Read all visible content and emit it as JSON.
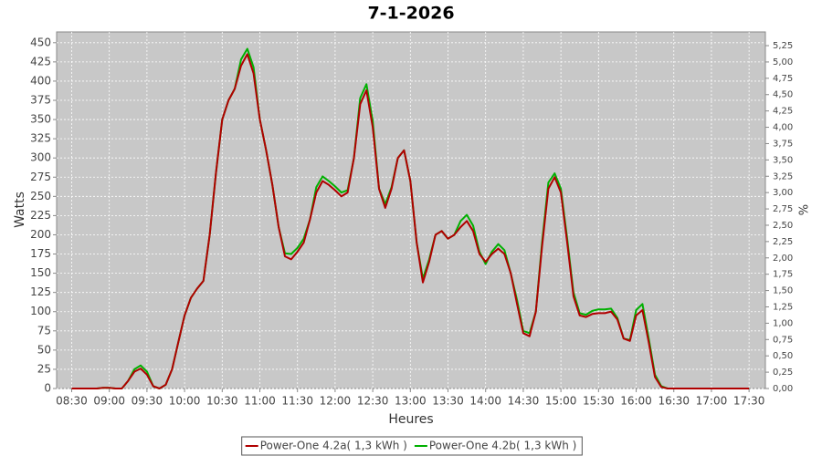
{
  "chart_data": {
    "type": "line",
    "title": "7-1-2026",
    "x_label": "Heures",
    "y_label": "Watts",
    "y2_label": "%",
    "x": [
      "08:30",
      "08:35",
      "08:40",
      "08:45",
      "08:50",
      "08:55",
      "09:00",
      "09:05",
      "09:10",
      "09:15",
      "09:20",
      "09:25",
      "09:30",
      "09:35",
      "09:40",
      "09:45",
      "09:50",
      "09:55",
      "10:00",
      "10:05",
      "10:10",
      "10:15",
      "10:20",
      "10:25",
      "10:30",
      "10:35",
      "10:40",
      "10:45",
      "10:50",
      "10:55",
      "11:00",
      "11:05",
      "11:10",
      "11:15",
      "11:20",
      "11:25",
      "11:30",
      "11:35",
      "11:40",
      "11:45",
      "11:50",
      "11:55",
      "12:00",
      "12:05",
      "12:10",
      "12:15",
      "12:20",
      "12:25",
      "12:30",
      "12:35",
      "12:40",
      "12:45",
      "12:50",
      "12:55",
      "13:00",
      "13:05",
      "13:10",
      "13:15",
      "13:20",
      "13:25",
      "13:30",
      "13:35",
      "13:40",
      "13:45",
      "13:50",
      "13:55",
      "14:00",
      "14:05",
      "14:10",
      "14:15",
      "14:20",
      "14:25",
      "14:30",
      "14:35",
      "14:40",
      "14:45",
      "14:50",
      "14:55",
      "15:00",
      "15:05",
      "15:10",
      "15:15",
      "15:20",
      "15:25",
      "15:30",
      "15:35",
      "15:40",
      "15:45",
      "15:50",
      "15:55",
      "16:00",
      "16:05",
      "16:10",
      "16:15",
      "16:20",
      "16:25",
      "16:30",
      "16:35",
      "16:40",
      "16:45",
      "16:50",
      "16:55",
      "17:00",
      "17:05",
      "17:10",
      "17:15",
      "17:20",
      "17:25",
      "17:30"
    ],
    "series": [
      {
        "name": "Power-One 4.2a( 1,3 kWh )",
        "color": "#b00000",
        "values": [
          0,
          0,
          0,
          0,
          0,
          1,
          1,
          0,
          0,
          10,
          22,
          26,
          18,
          3,
          0,
          5,
          25,
          60,
          95,
          118,
          130,
          140,
          200,
          280,
          350,
          375,
          390,
          420,
          435,
          410,
          350,
          310,
          265,
          210,
          172,
          168,
          178,
          190,
          220,
          255,
          270,
          265,
          258,
          250,
          255,
          300,
          370,
          388,
          340,
          260,
          235,
          260,
          300,
          310,
          270,
          190,
          138,
          165,
          200,
          205,
          195,
          200,
          210,
          218,
          205,
          175,
          165,
          175,
          182,
          175,
          150,
          110,
          72,
          68,
          100,
          185,
          260,
          275,
          255,
          190,
          120,
          95,
          93,
          97,
          98,
          98,
          100,
          90,
          65,
          62,
          95,
          102,
          60,
          15,
          2,
          0,
          0,
          0,
          0,
          0,
          0,
          0,
          0,
          0,
          0,
          0,
          0,
          0,
          0
        ]
      },
      {
        "name": "Power-One 4.2b( 1,3 kWh )",
        "color": "#00b000",
        "values": [
          0,
          0,
          0,
          0,
          0,
          1,
          1,
          0,
          0,
          10,
          25,
          30,
          22,
          3,
          0,
          5,
          25,
          60,
          95,
          118,
          130,
          140,
          200,
          280,
          350,
          375,
          390,
          428,
          442,
          418,
          350,
          310,
          265,
          210,
          176,
          175,
          183,
          195,
          220,
          262,
          276,
          270,
          263,
          255,
          258,
          300,
          378,
          396,
          348,
          260,
          240,
          262,
          300,
          310,
          270,
          190,
          143,
          168,
          200,
          205,
          195,
          200,
          218,
          226,
          212,
          178,
          162,
          178,
          188,
          180,
          150,
          115,
          75,
          72,
          100,
          190,
          268,
          280,
          260,
          195,
          125,
          98,
          96,
          101,
          103,
          103,
          104,
          92,
          65,
          63,
          102,
          110,
          65,
          18,
          3,
          0,
          0,
          0,
          0,
          0,
          0,
          0,
          0,
          0,
          0,
          0,
          0,
          0,
          0
        ]
      }
    ],
    "xlim": [
      "08:18",
      "17:43"
    ],
    "xticks": [
      "08:30",
      "09:00",
      "09:30",
      "10:00",
      "10:30",
      "11:00",
      "11:30",
      "12:00",
      "12:30",
      "13:00",
      "13:30",
      "14:00",
      "14:30",
      "15:00",
      "15:30",
      "16:00",
      "16:30",
      "17:00",
      "17:30"
    ],
    "ylim": [
      0,
      464
    ],
    "yticks": [
      0,
      25,
      50,
      75,
      100,
      125,
      150,
      175,
      200,
      225,
      250,
      275,
      300,
      325,
      350,
      375,
      400,
      425,
      450
    ],
    "y2lim": [
      0,
      5.46
    ],
    "y2ticks": [
      {
        "value": 0,
        "label": "0,00"
      },
      {
        "value": 0.25,
        "label": "0,25"
      },
      {
        "value": 0.5,
        "label": "0,50"
      },
      {
        "value": 0.75,
        "label": "0,75"
      },
      {
        "value": 1,
        "label": "1,00"
      },
      {
        "value": 1.25,
        "label": "1,25"
      },
      {
        "value": 1.5,
        "label": "1,50"
      },
      {
        "value": 1.75,
        "label": "1,75"
      },
      {
        "value": 2,
        "label": "2,00"
      },
      {
        "value": 2.25,
        "label": "2,25"
      },
      {
        "value": 2.5,
        "label": "2,50"
      },
      {
        "value": 2.75,
        "label": "2,75"
      },
      {
        "value": 3,
        "label": "3,00"
      },
      {
        "value": 3.25,
        "label": "3,25"
      },
      {
        "value": 3.5,
        "label": "3,50"
      },
      {
        "value": 3.75,
        "label": "3,75"
      },
      {
        "value": 4,
        "label": "4,00"
      },
      {
        "value": 4.25,
        "label": "4,25"
      },
      {
        "value": 4.5,
        "label": "4,50"
      },
      {
        "value": 4.75,
        "label": "4,75"
      },
      {
        "value": 5,
        "label": "5,00"
      },
      {
        "value": 5.25,
        "label": "5,25"
      }
    ],
    "grid": true,
    "plot_background": "#c8c8c8",
    "legend": "bottom"
  }
}
